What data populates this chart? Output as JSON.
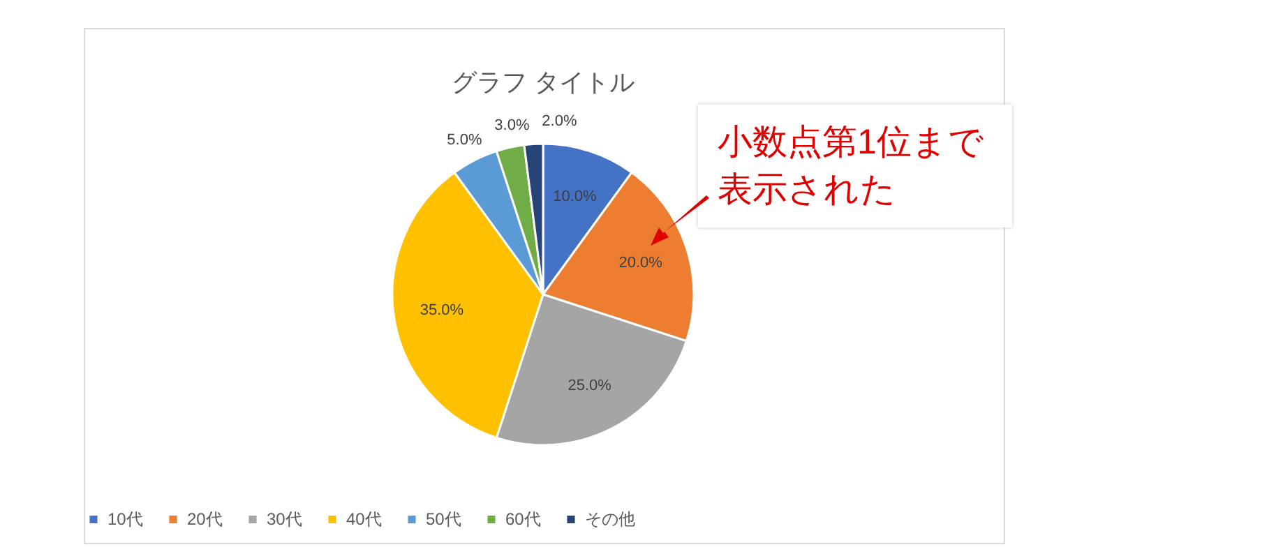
{
  "chart_data": {
    "type": "pie",
    "title": "グラフ タイトル",
    "categories": [
      "10代",
      "20代",
      "30代",
      "40代",
      "50代",
      "60代",
      "その他"
    ],
    "values": [
      10,
      20,
      25,
      35,
      5,
      3,
      2
    ],
    "value_labels": [
      "10.0%",
      "20.0%",
      "25.0%",
      "35.0%",
      "5.0%",
      "3.0%",
      "2.0%"
    ],
    "colors": [
      "#4472c4",
      "#ed7d31",
      "#a5a5a5",
      "#ffc000",
      "#5b9bd5",
      "#70ad47",
      "#264478"
    ],
    "legend": "bottom",
    "annotations": [
      "小数点第1位まで表示された"
    ]
  }
}
